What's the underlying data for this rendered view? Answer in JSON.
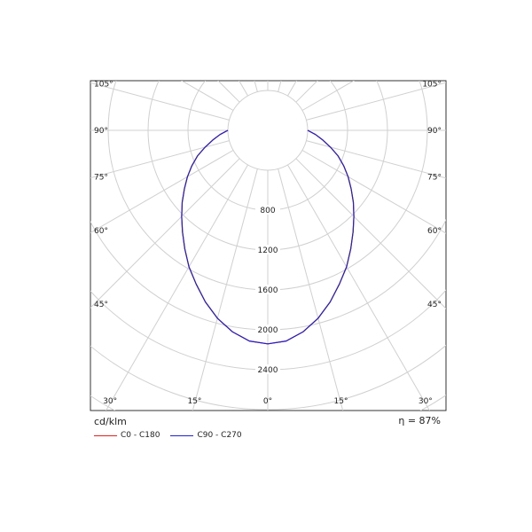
{
  "chart_data": {
    "type": "polar",
    "unit_label": "cd/klm",
    "efficiency_label": "η = 87%",
    "radial_ticks": [
      400,
      800,
      1200,
      1600,
      2000,
      2400
    ],
    "radial_tick_labels": [
      "800",
      "1200",
      "1600",
      "2000",
      "2400"
    ],
    "angle_labels_left": [
      "105°",
      "90°",
      "75°",
      "60°",
      "45°",
      "30°",
      "15°"
    ],
    "angle_labels_right": [
      "105°",
      "90°",
      "75°",
      "60°",
      "45°",
      "30°",
      "15°"
    ],
    "angle_label_bottom": "0°",
    "angle_label_values": [
      105,
      90,
      75,
      60,
      45,
      30,
      15
    ],
    "series": [
      {
        "name": "C0 - C180",
        "color": "#e02020",
        "angles_deg": [
          0,
          5,
          10,
          15,
          20,
          25,
          30,
          35,
          40,
          45,
          50,
          55,
          60,
          65,
          70,
          75,
          80,
          85,
          90
        ],
        "values": [
          2140,
          2120,
          2050,
          1950,
          1830,
          1700,
          1580,
          1450,
          1330,
          1220,
          1120,
          1020,
          930,
          840,
          750,
          650,
          560,
          480,
          400
        ]
      },
      {
        "name": "C90 - C270",
        "color": "#2020d0",
        "angles_deg": [
          0,
          5,
          10,
          15,
          20,
          25,
          30,
          35,
          40,
          45,
          50,
          55,
          60,
          65,
          70,
          75,
          80,
          85,
          90
        ],
        "values": [
          2140,
          2120,
          2050,
          1950,
          1830,
          1700,
          1580,
          1450,
          1330,
          1220,
          1120,
          1020,
          930,
          840,
          750,
          650,
          560,
          480,
          400
        ]
      }
    ]
  }
}
